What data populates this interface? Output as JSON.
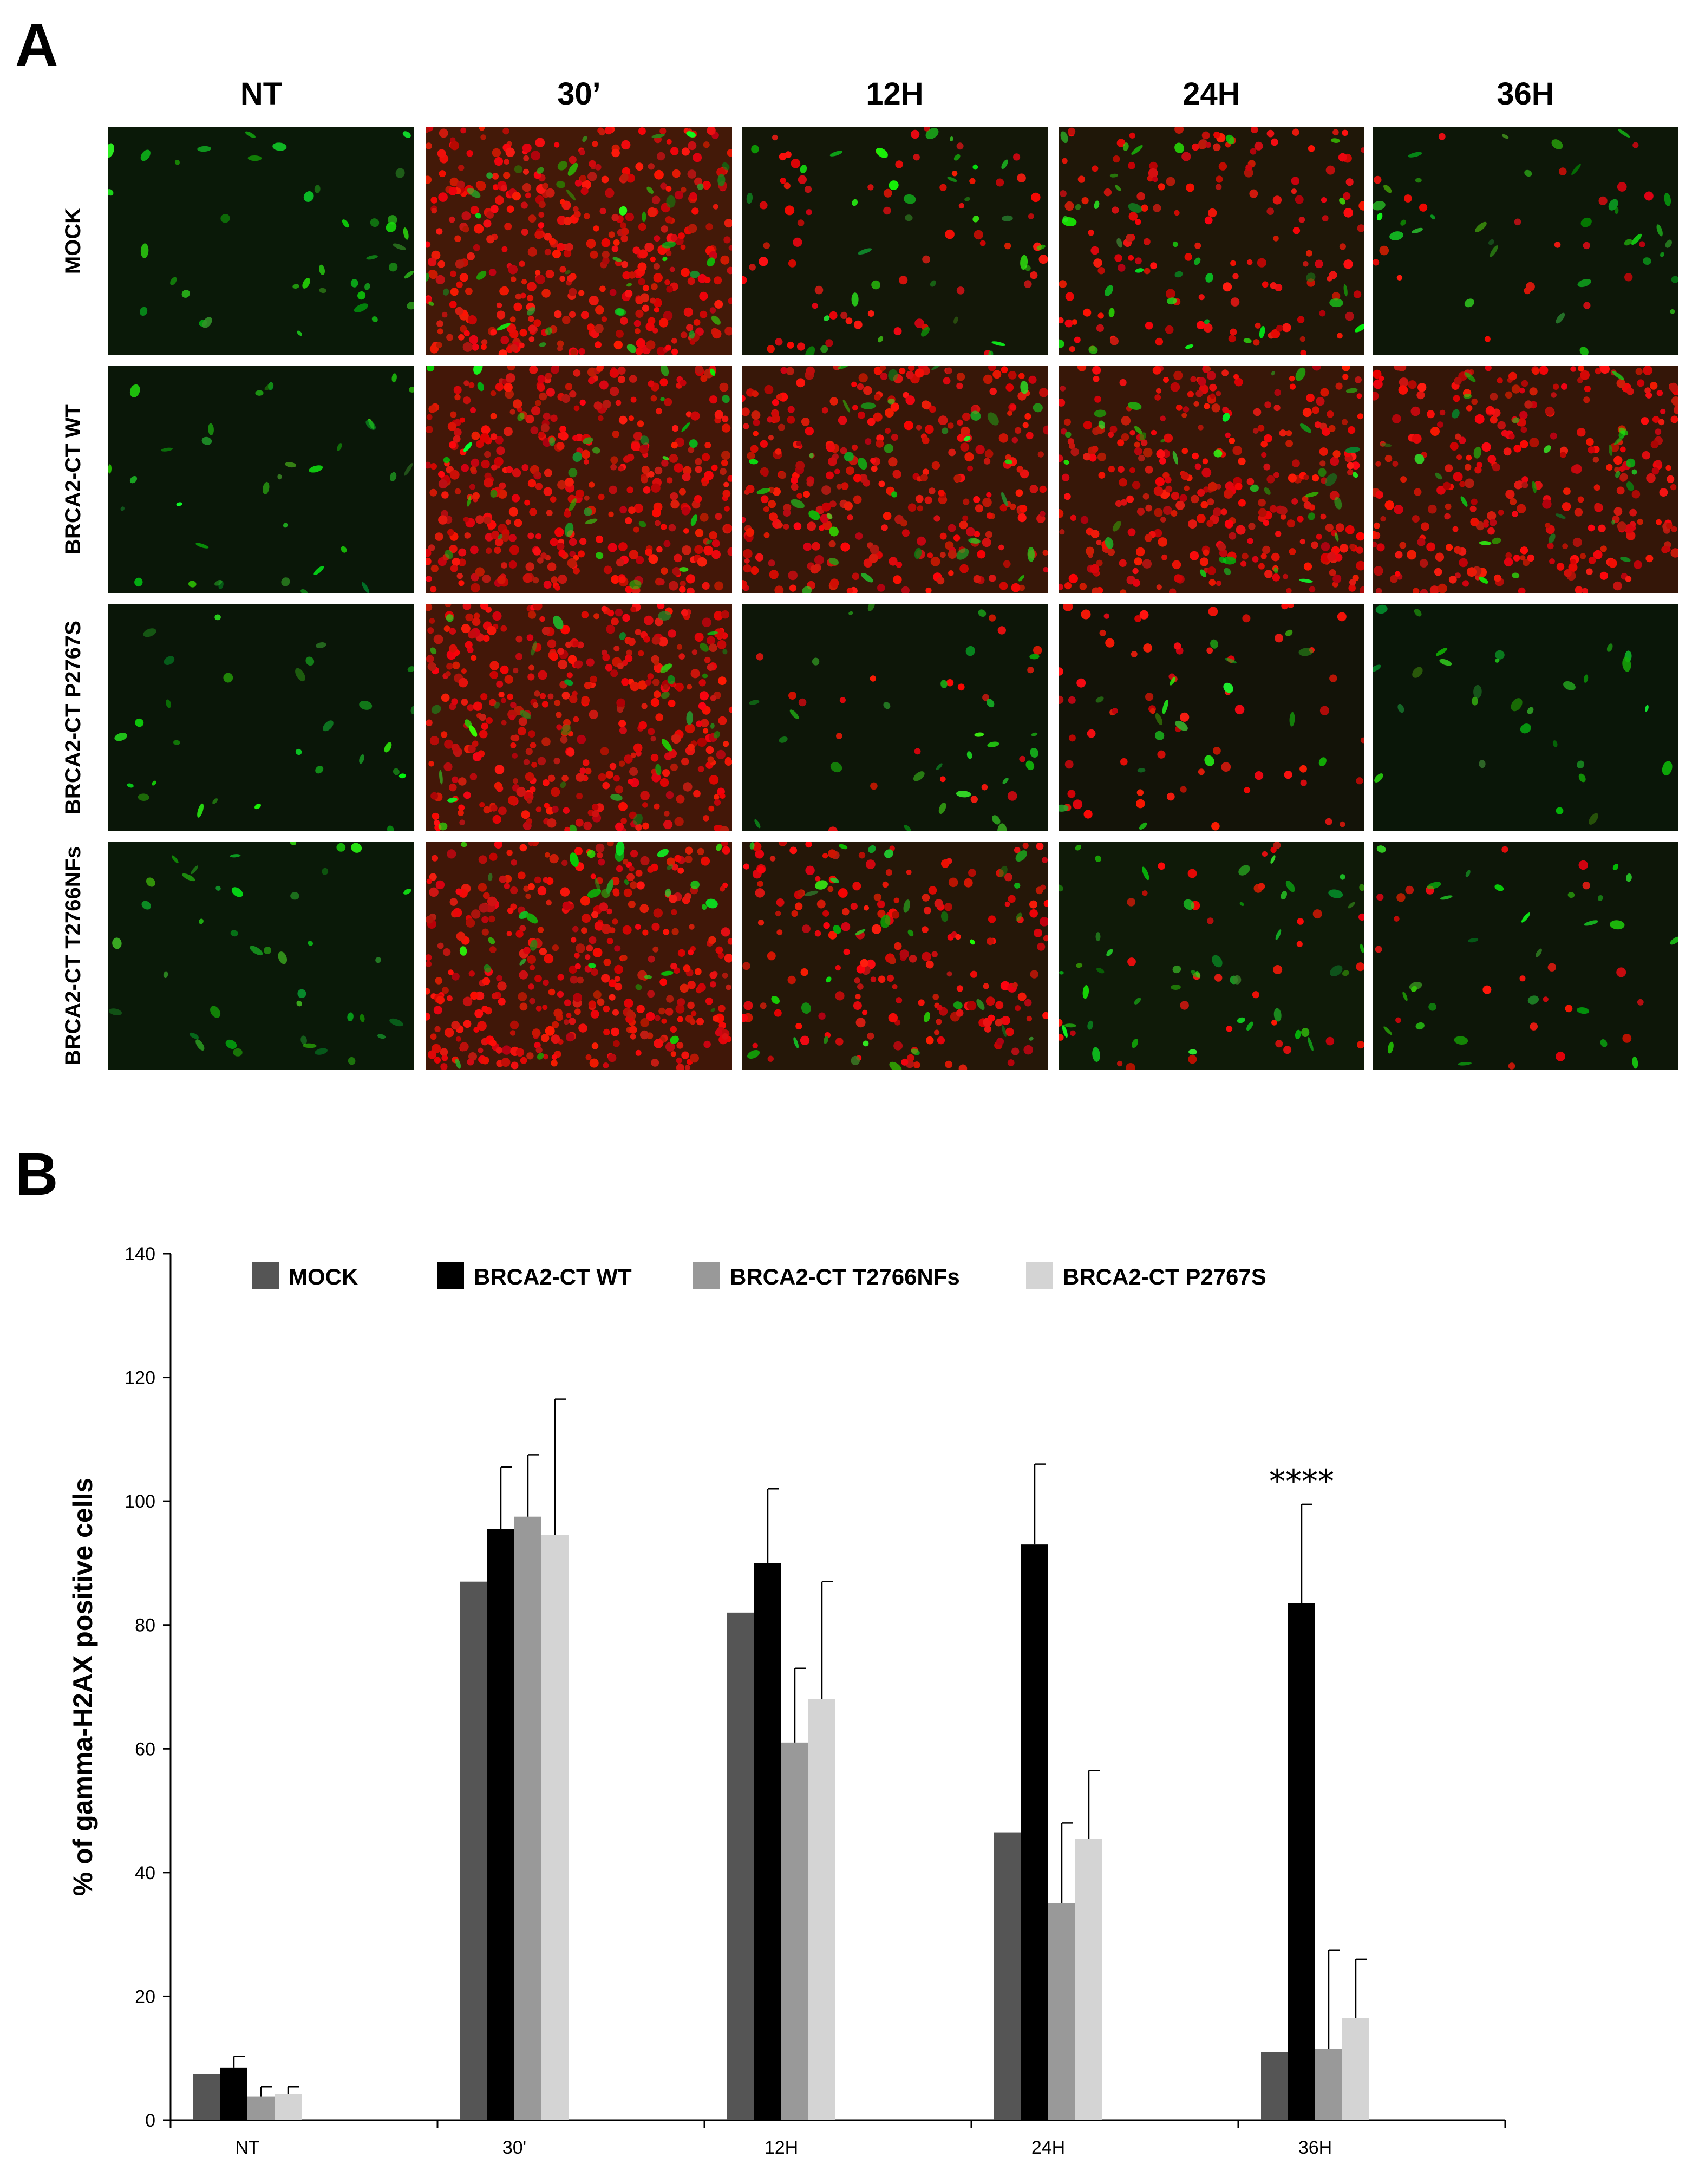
{
  "panel_a": {
    "letter": "A",
    "columns": [
      "NT",
      "30’",
      "12H",
      "24H",
      "36H"
    ],
    "rows": [
      "MOCK",
      "BRCA2-CT WT",
      "BRCA2-CT P2767S",
      "BRCA2-CT T2766NFs"
    ],
    "red_density": [
      [
        0.0,
        0.95,
        0.15,
        0.35,
        0.05
      ],
      [
        0.0,
        0.95,
        0.75,
        0.75,
        0.7
      ],
      [
        0.0,
        0.95,
        0.05,
        0.15,
        0.0
      ],
      [
        0.0,
        0.9,
        0.45,
        0.08,
        0.05
      ]
    ],
    "green_density": [
      [
        0.35,
        0.35,
        0.3,
        0.3,
        0.3
      ],
      [
        0.3,
        0.3,
        0.3,
        0.3,
        0.25
      ],
      [
        0.25,
        0.3,
        0.25,
        0.15,
        0.25
      ],
      [
        0.35,
        0.3,
        0.3,
        0.4,
        0.25
      ]
    ]
  },
  "panel_b": {
    "letter": "B",
    "significance_marker": "****"
  },
  "chart_data": {
    "type": "bar",
    "title": "",
    "xlabel": "",
    "ylabel": "% of gamma-H2AX positive cells",
    "categories": [
      "NT",
      "30'",
      "12H",
      "24H",
      "36H"
    ],
    "ylim": [
      0,
      140
    ],
    "yticks": [
      0,
      20,
      40,
      60,
      80,
      100,
      120,
      140
    ],
    "legend_position": "top",
    "grid": false,
    "series": [
      {
        "name": "MOCK",
        "color": "#555555",
        "values": [
          7.5,
          87,
          82,
          46.5,
          11
        ],
        "errors": [
          null,
          null,
          null,
          null,
          null
        ]
      },
      {
        "name": "BRCA2-CT WT",
        "color": "#000000",
        "values": [
          8.5,
          95.5,
          90,
          93,
          83.5
        ],
        "errors": [
          1.8,
          10,
          12,
          13,
          16
        ]
      },
      {
        "name": "BRCA2-CT T2766NFs",
        "color": "#999999",
        "values": [
          3.8,
          97.5,
          61,
          35,
          11.5
        ],
        "errors": [
          1.6,
          10,
          12,
          13,
          16
        ]
      },
      {
        "name": "BRCA2-CT P2767S",
        "color": "#d4d4d4",
        "values": [
          4.2,
          94.5,
          68,
          45.5,
          16.5
        ],
        "errors": [
          1.2,
          22,
          19,
          11,
          9.5
        ]
      }
    ],
    "annotations": [
      {
        "category": "36H",
        "text": "****"
      }
    ]
  }
}
